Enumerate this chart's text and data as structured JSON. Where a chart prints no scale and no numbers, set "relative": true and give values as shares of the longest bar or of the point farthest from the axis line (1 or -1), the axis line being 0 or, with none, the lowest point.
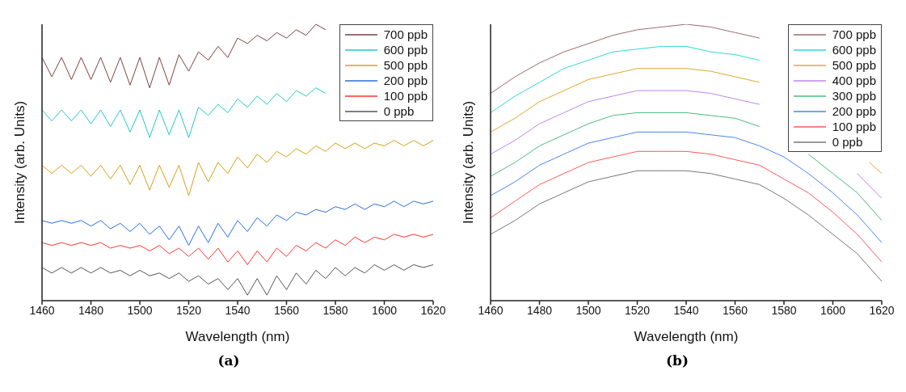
{
  "chart_data": [
    {
      "type": "line",
      "title": "(a)",
      "xlabel": "Wavelength (nm)",
      "ylabel": "Intensity (arb. Units)",
      "relative": true,
      "legend": "top right",
      "xlim": [
        1460,
        1620
      ],
      "xticks": [
        1460,
        1480,
        1500,
        1520,
        1540,
        1560,
        1580,
        1600,
        1620
      ],
      "x": [
        1460,
        1464,
        1468,
        1472,
        1476,
        1480,
        1484,
        1488,
        1492,
        1496,
        1500,
        1504,
        1508,
        1512,
        1516,
        1520,
        1524,
        1528,
        1532,
        1536,
        1540,
        1544,
        1548,
        1552,
        1556,
        1560,
        1564,
        1568,
        1572,
        1576,
        1580,
        1584,
        1588,
        1592,
        1596,
        1600,
        1604,
        1608,
        1612,
        1616,
        1620
      ],
      "series": [
        {
          "name": "700 ppb",
          "color": "#7f4040",
          "values": [
            0.88,
            0.81,
            0.88,
            0.8,
            0.88,
            0.8,
            0.88,
            0.79,
            0.88,
            0.78,
            0.88,
            0.77,
            0.88,
            0.78,
            0.89,
            0.83,
            0.9,
            0.87,
            0.92,
            0.88,
            0.95,
            0.93,
            0.96,
            0.94,
            0.97,
            0.95,
            0.98,
            0.96,
            1,
            0.98,
            null,
            null,
            null,
            null,
            null,
            null,
            null,
            null,
            null,
            null,
            null
          ]
        },
        {
          "name": "600 ppb",
          "color": "#22c8cc",
          "values": [
            0.69,
            0.65,
            0.69,
            0.65,
            0.69,
            0.64,
            0.69,
            0.63,
            0.69,
            0.61,
            0.69,
            0.59,
            0.69,
            0.6,
            0.69,
            0.59,
            0.7,
            0.67,
            0.71,
            0.68,
            0.73,
            0.7,
            0.74,
            0.71,
            0.75,
            0.72,
            0.76,
            0.74,
            0.77,
            0.75,
            null,
            null,
            null,
            null,
            null,
            null,
            null,
            null,
            null,
            null,
            null
          ]
        },
        {
          "name": "500 ppb",
          "color": "#d4a017",
          "values": [
            0.49,
            0.46,
            0.49,
            0.46,
            0.49,
            0.45,
            0.49,
            0.44,
            0.49,
            0.42,
            0.49,
            0.4,
            0.49,
            0.41,
            0.49,
            0.38,
            0.5,
            0.43,
            0.5,
            0.46,
            0.52,
            0.48,
            0.53,
            0.5,
            0.54,
            0.52,
            0.55,
            0.53,
            0.56,
            0.54,
            0.57,
            0.55,
            0.57,
            0.55,
            0.57,
            0.56,
            0.58,
            0.56,
            0.58,
            0.56,
            0.58
          ]
        },
        {
          "name": "200 ppb",
          "color": "#2a6fdb",
          "values": [
            0.29,
            0.28,
            0.29,
            0.28,
            0.29,
            0.27,
            0.29,
            0.26,
            0.28,
            0.25,
            0.28,
            0.24,
            0.27,
            0.22,
            0.27,
            0.2,
            0.27,
            0.21,
            0.28,
            0.23,
            0.29,
            0.25,
            0.3,
            0.27,
            0.31,
            0.29,
            0.32,
            0.31,
            0.33,
            0.32,
            0.34,
            0.33,
            0.35,
            0.33,
            0.35,
            0.34,
            0.36,
            0.34,
            0.36,
            0.35,
            0.36
          ]
        },
        {
          "name": "100 ppb",
          "color": "#ff3333",
          "values": [
            0.21,
            0.2,
            0.21,
            0.2,
            0.21,
            0.2,
            0.21,
            0.19,
            0.2,
            0.19,
            0.2,
            0.18,
            0.2,
            0.17,
            0.19,
            0.16,
            0.19,
            0.15,
            0.19,
            0.14,
            0.18,
            0.13,
            0.18,
            0.14,
            0.19,
            0.16,
            0.2,
            0.18,
            0.21,
            0.19,
            0.22,
            0.2,
            0.23,
            0.21,
            0.23,
            0.22,
            0.24,
            0.23,
            0.24,
            0.23,
            0.24
          ]
        },
        {
          "name": "0 ppb",
          "color": "#555555",
          "values": [
            0.12,
            0.1,
            0.12,
            0.1,
            0.12,
            0.1,
            0.12,
            0.1,
            0.11,
            0.09,
            0.11,
            0.09,
            0.1,
            0.08,
            0.1,
            0.07,
            0.09,
            0.06,
            0.08,
            0.04,
            0.08,
            0.02,
            0.08,
            0.02,
            0.09,
            0.04,
            0.1,
            0.06,
            0.11,
            0.08,
            0.12,
            0.09,
            0.12,
            0.1,
            0.13,
            0.11,
            0.13,
            0.11,
            0.13,
            0.12,
            0.13
          ]
        }
      ]
    },
    {
      "type": "line",
      "title": "(b)",
      "xlabel": "Wavelength (nm)",
      "ylabel": "Intensity (arb. Units)",
      "relative": true,
      "legend": "top right",
      "xlim": [
        1460,
        1620
      ],
      "xticks": [
        1460,
        1480,
        1500,
        1520,
        1540,
        1560,
        1580,
        1600,
        1620
      ],
      "x": [
        1460,
        1470,
        1480,
        1490,
        1500,
        1510,
        1520,
        1530,
        1540,
        1550,
        1560,
        1570,
        1580,
        1590,
        1600,
        1610,
        1620
      ],
      "series": [
        {
          "name": "700 ppb",
          "color": "#9c6b6b",
          "values": [
            0.75,
            0.81,
            0.86,
            0.9,
            0.93,
            0.96,
            0.98,
            0.99,
            1,
            0.99,
            0.97,
            0.95,
            null,
            null,
            null,
            null,
            null
          ]
        },
        {
          "name": "600 ppb",
          "color": "#33d6d6",
          "values": [
            0.68,
            0.74,
            0.79,
            0.84,
            0.87,
            0.9,
            0.91,
            0.92,
            0.92,
            0.9,
            0.89,
            0.87,
            null,
            null,
            null,
            null,
            null
          ]
        },
        {
          "name": "500 ppb",
          "color": "#e0a82e",
          "x": [
            1460,
            1470,
            1480,
            1490,
            1500,
            1510,
            1520,
            1530,
            1540,
            1550,
            1560,
            1570,
            1580,
            1590,
            1600,
            1610,
            1615,
            1620
          ],
          "values": [
            0.61,
            0.66,
            0.72,
            0.76,
            0.8,
            0.82,
            0.84,
            0.84,
            0.84,
            0.83,
            0.81,
            0.79,
            null,
            null,
            null,
            null,
            0.5,
            0.46
          ]
        },
        {
          "name": "400 ppb",
          "color": "#c084f0",
          "values": [
            0.53,
            0.58,
            0.64,
            0.68,
            0.72,
            0.74,
            0.76,
            0.76,
            0.76,
            0.75,
            0.73,
            0.71,
            null,
            null,
            null,
            0.46,
            0.37
          ]
        },
        {
          "name": "300 ppb",
          "color": "#4cbb7f",
          "values": [
            0.45,
            0.5,
            0.56,
            0.6,
            0.64,
            0.67,
            0.68,
            0.68,
            0.68,
            0.67,
            0.66,
            0.63,
            null,
            0.53,
            0.46,
            0.39,
            0.29
          ]
        },
        {
          "name": "200 ppb",
          "color": "#4a86f0",
          "values": [
            0.38,
            0.43,
            0.49,
            0.53,
            0.57,
            0.59,
            0.61,
            0.61,
            0.61,
            0.6,
            0.59,
            0.56,
            0.52,
            0.46,
            0.39,
            0.31,
            0.21
          ]
        },
        {
          "name": "100 ppb",
          "color": "#ff5a5a",
          "values": [
            0.3,
            0.36,
            0.42,
            0.46,
            0.5,
            0.52,
            0.54,
            0.54,
            0.54,
            0.53,
            0.51,
            0.49,
            0.44,
            0.39,
            0.32,
            0.24,
            0.14
          ]
        },
        {
          "name": "0 ppb",
          "color": "#777777",
          "values": [
            0.24,
            0.29,
            0.35,
            0.39,
            0.43,
            0.45,
            0.47,
            0.47,
            0.47,
            0.46,
            0.44,
            0.42,
            0.37,
            0.31,
            0.24,
            0.17,
            0.07
          ]
        }
      ]
    }
  ]
}
